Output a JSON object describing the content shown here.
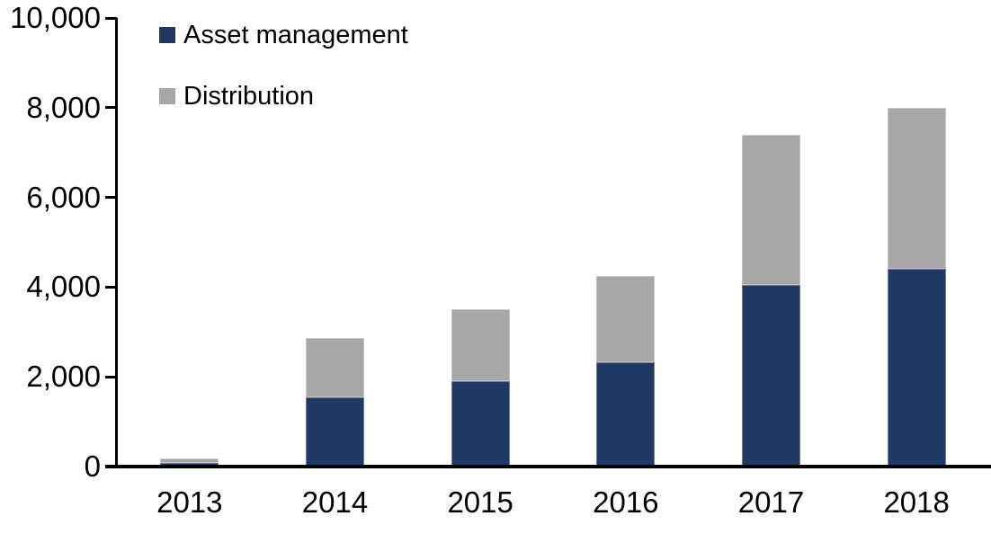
{
  "chart_data": {
    "type": "bar",
    "stacked": true,
    "title": "",
    "xlabel": "",
    "ylabel": "",
    "categories": [
      "2013",
      "2014",
      "2015",
      "2016",
      "2017",
      "2018"
    ],
    "series": [
      {
        "name": "Asset management",
        "color": "#1f3864",
        "values": [
          90,
          1550,
          1900,
          2320,
          4050,
          4400
        ]
      },
      {
        "name": "Distribution",
        "color": "#a6a6a6",
        "values": [
          100,
          1310,
          1600,
          1930,
          3350,
          3600
        ]
      }
    ],
    "totals": [
      190,
      2860,
      3500,
      4250,
      7400,
      8000
    ],
    "ylim": [
      0,
      10000
    ],
    "yticks": [
      {
        "value": 0,
        "label": "0"
      },
      {
        "value": 2000,
        "label": "2,000"
      },
      {
        "value": 4000,
        "label": "4,000"
      },
      {
        "value": 6000,
        "label": "6,000"
      },
      {
        "value": 8000,
        "label": "8,000"
      },
      {
        "value": 10000,
        "label": "10,000"
      }
    ],
    "grid": false,
    "legend_position": "top-left-inside"
  },
  "colors": {
    "axis": "#000000",
    "background": "#ffffff",
    "asset_management": "#1f3864",
    "distribution": "#a6a6a6"
  }
}
